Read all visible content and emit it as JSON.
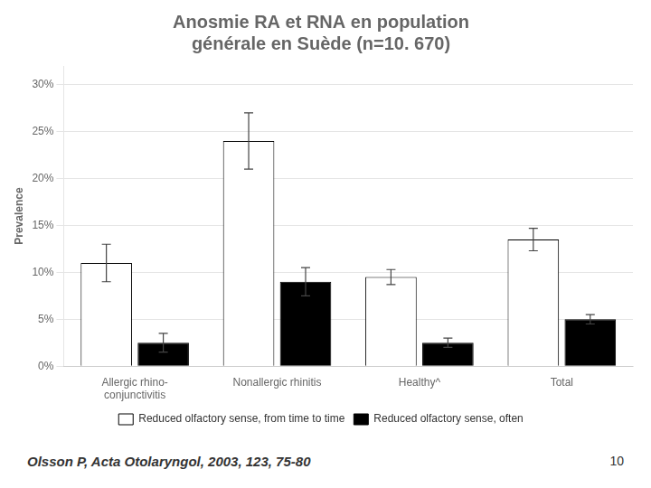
{
  "chart_data": {
    "type": "bar",
    "title": "Anosmie RA et RNA en population\ngénérale en Suède (n=10. 670)",
    "categories": [
      "Allergic rhino-\nconjunctivitis",
      "Nonallergic rhinitis",
      "Healthy^",
      "Total"
    ],
    "series": [
      {
        "name": "Reduced olfactory sense, from time to time",
        "color": "#ffffff",
        "values": [
          11.0,
          24.0,
          9.5,
          13.5
        ],
        "errors": [
          2.0,
          3.0,
          0.8,
          1.2
        ]
      },
      {
        "name": "Reduced olfactory sense, often",
        "color": "#000000",
        "values": [
          2.5,
          9.0,
          2.5,
          5.0
        ],
        "errors": [
          1.0,
          1.5,
          0.5,
          0.5
        ]
      }
    ],
    "ylabel": "Prevalence",
    "ylim": [
      0,
      32
    ],
    "yticks": [
      {
        "value": 0,
        "label": "0%"
      },
      {
        "value": 5,
        "label": "5%"
      },
      {
        "value": 10,
        "label": "10%"
      },
      {
        "value": 15,
        "label": "15%"
      },
      {
        "value": 20,
        "label": "20%"
      },
      {
        "value": 25,
        "label": "25%"
      },
      {
        "value": 30,
        "label": "30%"
      }
    ],
    "grid": true,
    "legend": "bottom",
    "annotations": [
      "Olsson P, Acta Otolaryngol, 2003, 123, 75-80",
      "10"
    ]
  }
}
